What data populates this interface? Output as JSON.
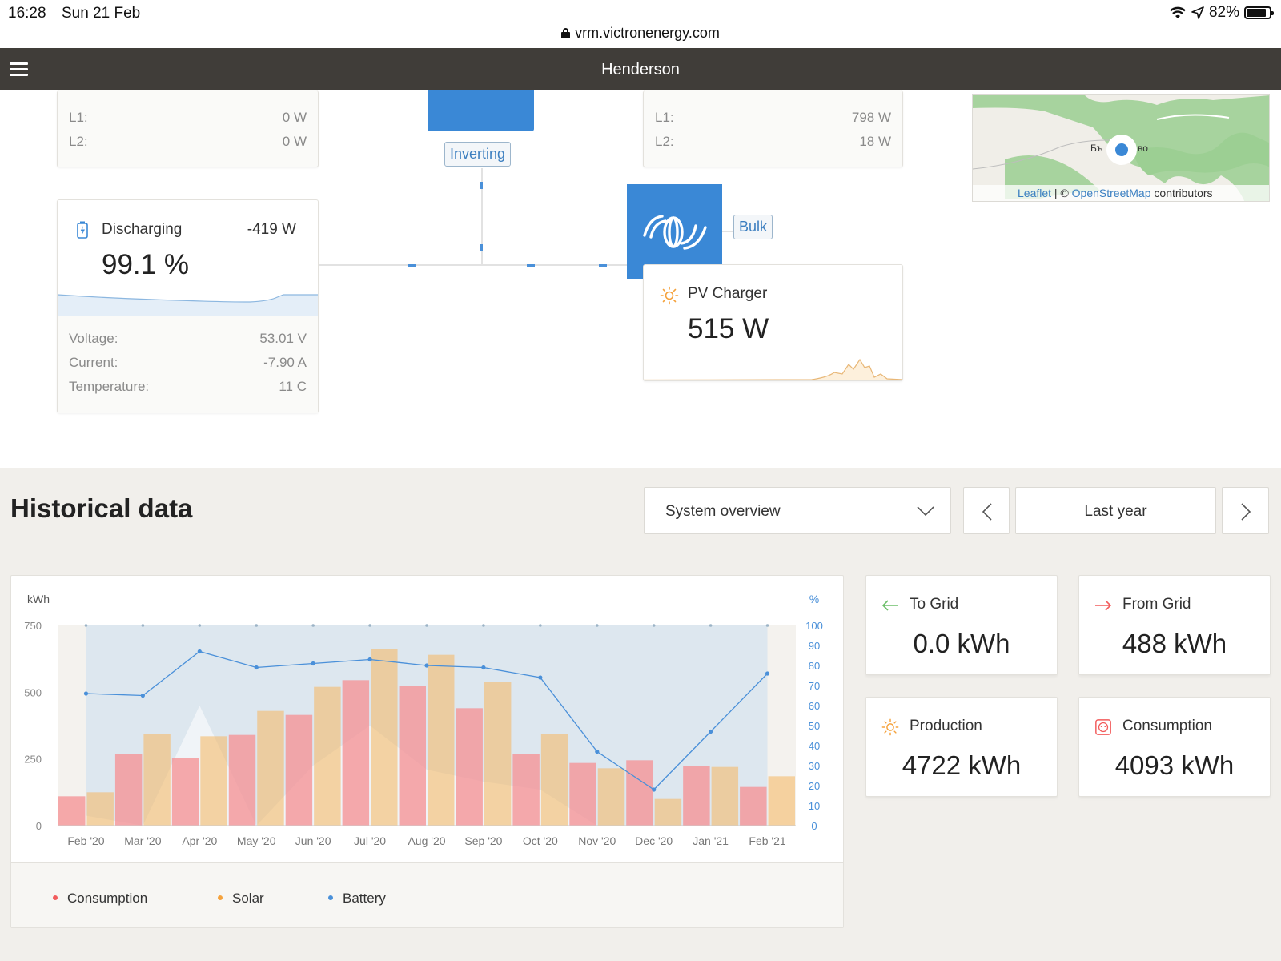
{
  "status": {
    "time": "16:28",
    "date": "Sun 21 Feb",
    "url": "vrm.victronenergy.com",
    "battery": "82%"
  },
  "nav": {
    "title": "Henderson"
  },
  "ac_in": {
    "l1_label": "L1:",
    "l1_value": "0 W",
    "l2_label": "L2:",
    "l2_value": "0 W"
  },
  "inverter": {
    "state": "Inverting"
  },
  "ac_loads": {
    "l1_label": "L1:",
    "l1_value": "798 W",
    "l2_label": "L2:",
    "l2_value": "18 W"
  },
  "map": {
    "attribution_leaflet": "Leaflet",
    "attribution_sep": " | © ",
    "attribution_osm": "OpenStreetMap",
    "attribution_rest": " contributors",
    "place_left": "Бъ",
    "place_right": "во"
  },
  "battery": {
    "state": "Discharging",
    "power": "-419 W",
    "soc": "99.1 %",
    "voltage_label": "Voltage:",
    "voltage": "53.01 V",
    "current_label": "Current:",
    "current": "-7.90 A",
    "temperature_label": "Temperature:",
    "temperature": "11 C"
  },
  "charger": {
    "state": "Bulk",
    "title": "PV Charger",
    "power": "515 W"
  },
  "historical": {
    "title": "Historical data",
    "view_select": "System overview",
    "period": "Last year",
    "unit_left": "kWh",
    "unit_right": "%",
    "legend": [
      "Consumption",
      "Solar",
      "Battery"
    ]
  },
  "stats": {
    "to_grid_label": "To Grid",
    "to_grid_value": "0.0 kWh",
    "from_grid_label": "From Grid",
    "from_grid_value": "488 kWh",
    "production_label": "Production",
    "production_value": "4722 kWh",
    "consumption_label": "Consumption",
    "consumption_value": "4093 kWh"
  },
  "colors": {
    "consumption": "#f25c5c",
    "solar": "#f5a23c",
    "battery": "#4a90d9",
    "nav": "#403d39",
    "accent_blue": "#3a88d6"
  },
  "chart_data": {
    "type": "bar",
    "categories": [
      "Feb '20",
      "Mar '20",
      "Apr '20",
      "May '20",
      "Jun '20",
      "Jul '20",
      "Aug '20",
      "Sep '20",
      "Oct '20",
      "Nov '20",
      "Dec '20",
      "Jan '21",
      "Feb '21"
    ],
    "series": [
      {
        "name": "Consumption",
        "axis": "left",
        "values": [
          110,
          270,
          255,
          340,
          415,
          545,
          525,
          440,
          270,
          235,
          245,
          225,
          145
        ]
      },
      {
        "name": "Solar",
        "axis": "left",
        "values": [
          125,
          345,
          335,
          430,
          520,
          660,
          640,
          540,
          345,
          215,
          100,
          220,
          185
        ]
      },
      {
        "name": "Battery",
        "axis": "right",
        "type": "line",
        "values": [
          66,
          65,
          87,
          79,
          81,
          83,
          80,
          79,
          74,
          37,
          18,
          47,
          76
        ]
      }
    ],
    "ylabel": "kWh",
    "ylim": [
      0,
      750
    ],
    "yticks": [
      0,
      250,
      500,
      750
    ],
    "y2label": "%",
    "y2lim": [
      0,
      100
    ],
    "y2ticks": [
      0,
      10,
      20,
      30,
      40,
      50,
      60,
      70,
      80,
      90,
      100
    ]
  }
}
